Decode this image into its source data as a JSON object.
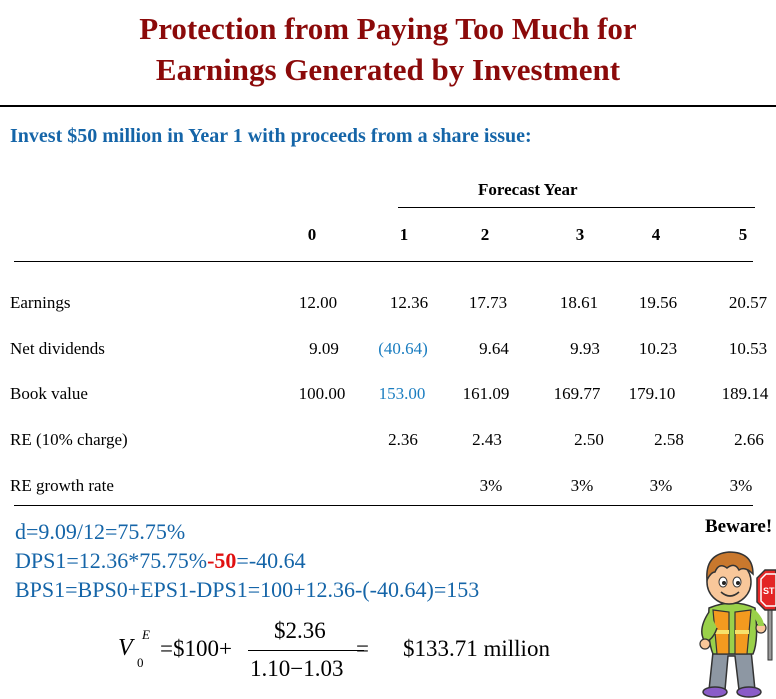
{
  "title": {
    "line1": "Protection from Paying Too Much for",
    "line2": "Earnings Generated by Investment"
  },
  "subtitle": "Invest $50 million in Year 1 with proceeds from a share issue:",
  "table": {
    "forecast_label": "Forecast Year",
    "years": [
      "0",
      "1",
      "2",
      "3",
      "4",
      "5"
    ],
    "rows": [
      {
        "label": "Earnings",
        "values": [
          "12.00",
          "12.36",
          "17.73",
          "18.61",
          "19.56",
          "20.57"
        ]
      },
      {
        "label": "Net dividends",
        "values": [
          "9.09",
          "(40.64)",
          "9.64",
          "9.93",
          "10.23",
          "10.53"
        ]
      },
      {
        "label": "Book value",
        "values": [
          "100.00",
          "153.00",
          "161.09",
          "169.77",
          "179.10",
          "189.14"
        ]
      },
      {
        "label": "RE (10% charge)",
        "values": [
          "",
          "2.36",
          "2.43",
          "2.50",
          "2.58",
          "2.66"
        ]
      },
      {
        "label": "RE growth rate",
        "values": [
          "",
          "",
          "3%",
          "3%",
          "3%",
          "3%"
        ]
      }
    ],
    "highlight_color": "#1a7dc0"
  },
  "formulas": {
    "line1": "d=9.09/12=75.75%",
    "line2_start": "DPS1=12.36*75.75%",
    "line2_highlight": "-50",
    "line2_end": "=-40.64",
    "line3": "BPS1=BPS0+EPS1-DPS1=100+12.36-(-40.64)=153"
  },
  "equation": {
    "var": "V",
    "sup": "E",
    "sub": "0",
    "lhs": "=$100+",
    "numerator": "$2.36",
    "denominator": "1.10−1.03",
    "equals": "=",
    "result": "$133.71 million"
  },
  "beware": "Beware!",
  "icons": {
    "kid": "boy-with-stop-sign-icon"
  }
}
